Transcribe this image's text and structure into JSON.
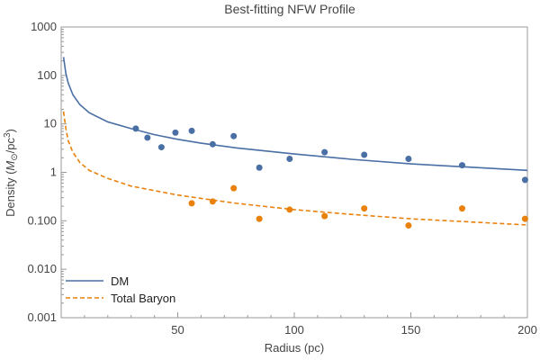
{
  "chart_data": {
    "type": "scatter",
    "title": "Best-fitting NFW Profile",
    "xlabel": "Radius (pc)",
    "ylabel": "Density (M⊙/pc³)",
    "xlim": [
      0,
      200
    ],
    "ylim": [
      0.001,
      1000
    ],
    "yscale": "log",
    "x_ticks": [
      50,
      100,
      150,
      200
    ],
    "y_ticks": [
      {
        "value": 0.001,
        "label": "0.001"
      },
      {
        "value": 0.01,
        "label": "0.010"
      },
      {
        "value": 0.1,
        "label": "0.100"
      },
      {
        "value": 1,
        "label": "1"
      },
      {
        "value": 10,
        "label": "10"
      },
      {
        "value": 100,
        "label": "100"
      },
      {
        "value": 1000,
        "label": "1000"
      }
    ],
    "grid": false,
    "legend_position": "bottom-left",
    "series": [
      {
        "name": "DM",
        "color": "#4a6fa5",
        "line_style": "solid",
        "fit_curve": [
          [
            1,
            240
          ],
          [
            2,
            110
          ],
          [
            3,
            70
          ],
          [
            5,
            40
          ],
          [
            8,
            25
          ],
          [
            12,
            17
          ],
          [
            20,
            11
          ],
          [
            30,
            8
          ],
          [
            40,
            6
          ],
          [
            50,
            4.8
          ],
          [
            60,
            4.0
          ],
          [
            75,
            3.2
          ],
          [
            100,
            2.4
          ],
          [
            125,
            1.85
          ],
          [
            150,
            1.5
          ],
          [
            175,
            1.28
          ],
          [
            200,
            1.1
          ]
        ],
        "points": [
          [
            32,
            8
          ],
          [
            37,
            5.2
          ],
          [
            43,
            3.3
          ],
          [
            49,
            6.6
          ],
          [
            56,
            7.2
          ],
          [
            65,
            3.8
          ],
          [
            74,
            5.6
          ],
          [
            85,
            1.25
          ],
          [
            98,
            1.9
          ],
          [
            113,
            2.6
          ],
          [
            130,
            2.3
          ],
          [
            149,
            1.9
          ],
          [
            172,
            1.4
          ],
          [
            199,
            0.7
          ]
        ]
      },
      {
        "name": "Total Baryon",
        "color": "#e8820c",
        "line_style": "dashed",
        "fit_curve": [
          [
            1,
            18
          ],
          [
            2,
            8
          ],
          [
            3,
            4.5
          ],
          [
            5,
            2.6
          ],
          [
            8,
            1.6
          ],
          [
            12,
            1.1
          ],
          [
            20,
            0.75
          ],
          [
            30,
            0.52
          ],
          [
            40,
            0.42
          ],
          [
            50,
            0.34
          ],
          [
            60,
            0.29
          ],
          [
            75,
            0.23
          ],
          [
            100,
            0.17
          ],
          [
            125,
            0.135
          ],
          [
            150,
            0.11
          ],
          [
            175,
            0.095
          ],
          [
            200,
            0.082
          ]
        ],
        "points": [
          [
            56,
            0.23
          ],
          [
            65,
            0.25
          ],
          [
            74,
            0.47
          ],
          [
            85,
            0.11
          ],
          [
            98,
            0.17
          ],
          [
            113,
            0.125
          ],
          [
            130,
            0.18
          ],
          [
            149,
            0.08
          ],
          [
            172,
            0.18
          ],
          [
            199,
            0.11
          ]
        ]
      }
    ]
  }
}
